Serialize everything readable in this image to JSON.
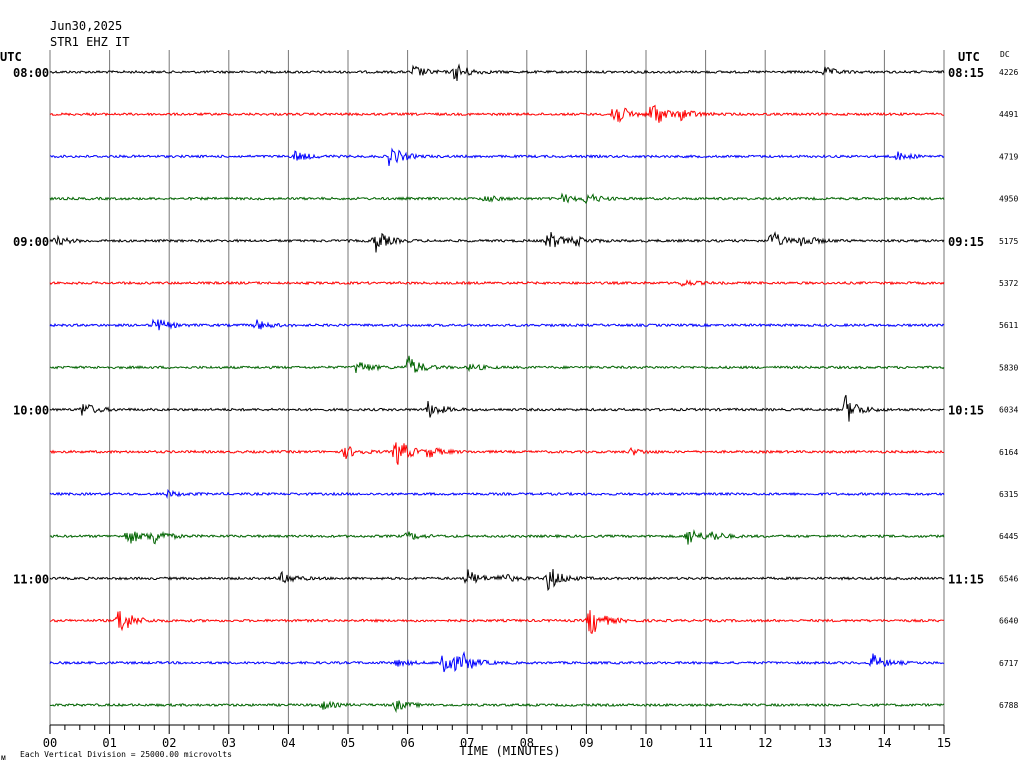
{
  "chart_data": {
    "type": "line",
    "title": "Jun30,2025",
    "subtitle": "STR1 EHZ IT",
    "left_utc_label": "UTC",
    "right_utc_label": "UTC",
    "dc_label": "DC",
    "xlabel": "TIME (MINUTES)",
    "xlim": [
      0,
      15
    ],
    "x_ticks": [
      "00",
      "01",
      "02",
      "03",
      "04",
      "05",
      "06",
      "07",
      "08",
      "09",
      "10",
      "11",
      "12",
      "13",
      "14",
      "15"
    ],
    "footer_mark": "ᴍ",
    "footer_note": "Each Vertical Division = 25000.00 microvolts",
    "grid": true,
    "trace_colors": [
      "#000000",
      "#ff0000",
      "#0000ff",
      "#006400"
    ],
    "rows": [
      {
        "left": "08:00",
        "right": "08:15",
        "dc": "4226",
        "events": [
          {
            "t": 6.1,
            "a": 0.6
          },
          {
            "t": 6.8,
            "a": 0.9
          },
          {
            "t": 13.0,
            "a": 0.4
          }
        ]
      },
      {
        "left": "",
        "right": "",
        "dc": "4491",
        "events": [
          {
            "t": 9.45,
            "a": 1.3
          },
          {
            "t": 10.1,
            "a": 1.4
          },
          {
            "t": 10.6,
            "a": 0.5
          }
        ]
      },
      {
        "left": "",
        "right": "",
        "dc": "4719",
        "events": [
          {
            "t": 4.1,
            "a": 0.5
          },
          {
            "t": 5.7,
            "a": 1.0
          },
          {
            "t": 14.2,
            "a": 0.4
          }
        ]
      },
      {
        "left": "",
        "right": "",
        "dc": "4950",
        "events": [
          {
            "t": 7.3,
            "a": 0.3
          },
          {
            "t": 8.6,
            "a": 0.4
          },
          {
            "t": 9.0,
            "a": 0.5
          }
        ]
      },
      {
        "left": "09:00",
        "right": "09:15",
        "dc": "5175",
        "events": [
          {
            "t": 0.1,
            "a": 0.4
          },
          {
            "t": 5.45,
            "a": 1.1
          },
          {
            "t": 8.35,
            "a": 1.0
          },
          {
            "t": 8.8,
            "a": 0.4
          },
          {
            "t": 12.1,
            "a": 0.9
          },
          {
            "t": 12.6,
            "a": 0.6
          }
        ]
      },
      {
        "left": "",
        "right": "",
        "dc": "5372",
        "events": [
          {
            "t": 10.6,
            "a": 0.3
          }
        ]
      },
      {
        "left": "",
        "right": "",
        "dc": "5611",
        "events": [
          {
            "t": 1.75,
            "a": 0.7
          },
          {
            "t": 3.45,
            "a": 0.5
          }
        ]
      },
      {
        "left": "",
        "right": "",
        "dc": "5830",
        "events": [
          {
            "t": 5.15,
            "a": 0.7
          },
          {
            "t": 6.0,
            "a": 1.1
          },
          {
            "t": 7.05,
            "a": 0.3
          }
        ]
      },
      {
        "left": "10:00",
        "right": "10:15",
        "dc": "6034",
        "events": [
          {
            "t": 0.55,
            "a": 0.7
          },
          {
            "t": 6.35,
            "a": 0.8
          },
          {
            "t": 13.35,
            "a": 1.4
          }
        ]
      },
      {
        "left": "",
        "right": "",
        "dc": "6164",
        "events": [
          {
            "t": 4.95,
            "a": 0.6
          },
          {
            "t": 5.8,
            "a": 1.5
          },
          {
            "t": 6.35,
            "a": 0.5
          },
          {
            "t": 9.75,
            "a": 0.3
          }
        ]
      },
      {
        "left": "",
        "right": "",
        "dc": "6315",
        "events": [
          {
            "t": 1.95,
            "a": 0.3
          }
        ]
      },
      {
        "left": "",
        "right": "",
        "dc": "6445",
        "events": [
          {
            "t": 1.3,
            "a": 0.8
          },
          {
            "t": 1.7,
            "a": 0.9
          },
          {
            "t": 6.0,
            "a": 0.4
          },
          {
            "t": 10.7,
            "a": 0.9
          },
          {
            "t": 11.1,
            "a": 0.4
          }
        ]
      },
      {
        "left": "11:00",
        "right": "11:15",
        "dc": "6546",
        "events": [
          {
            "t": 3.9,
            "a": 0.6
          },
          {
            "t": 7.0,
            "a": 0.8
          },
          {
            "t": 7.55,
            "a": 0.5
          },
          {
            "t": 8.35,
            "a": 1.3
          }
        ]
      },
      {
        "left": "",
        "right": "",
        "dc": "6640",
        "events": [
          {
            "t": 1.15,
            "a": 1.5
          },
          {
            "t": 9.05,
            "a": 1.6
          }
        ]
      },
      {
        "left": "",
        "right": "",
        "dc": "6717",
        "events": [
          {
            "t": 5.8,
            "a": 0.3
          },
          {
            "t": 6.6,
            "a": 1.8
          },
          {
            "t": 6.95,
            "a": 0.6
          },
          {
            "t": 13.8,
            "a": 0.8
          }
        ]
      },
      {
        "left": "",
        "right": "",
        "dc": "6788",
        "events": [
          {
            "t": 4.55,
            "a": 0.4
          },
          {
            "t": 5.8,
            "a": 0.5
          }
        ]
      }
    ]
  }
}
